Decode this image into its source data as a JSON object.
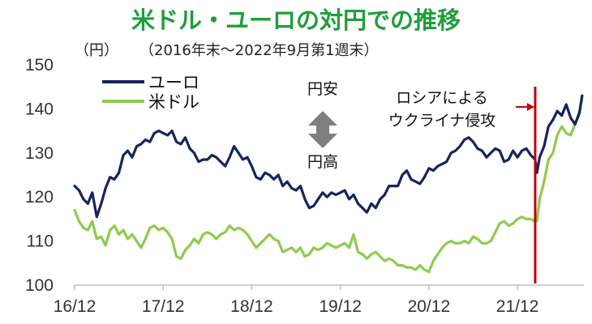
{
  "chart_data": {
    "type": "line",
    "title": "米ドル・ユーロの対円での推移",
    "unit_label": "（円）",
    "period_label": "（2016年末～2022年9月第1週末）",
    "ylim": [
      100,
      150
    ],
    "y_ticks": [
      "150",
      "140",
      "130",
      "120",
      "110",
      "100"
    ],
    "x_ticks": [
      "16/12",
      "17/12",
      "18/12",
      "19/12",
      "20/12",
      "21/12"
    ],
    "x_tick_values": [
      2016.95,
      2017.95,
      2018.95,
      2019.95,
      2020.95,
      2021.95
    ],
    "xlim": [
      2016.95,
      2022.7
    ],
    "grid": false,
    "legend_position": "top-left",
    "colors": {
      "euro": "#14245e",
      "usd": "#8ecb4e",
      "title": "#1f9e3a",
      "marker": "#c0000b",
      "arrow": "#7f7f7f"
    },
    "series": [
      {
        "name": "ユーロ",
        "x": [
          2016.95,
          2017.0,
          2017.05,
          2017.1,
          2017.15,
          2017.2,
          2017.25,
          2017.3,
          2017.35,
          2017.4,
          2017.45,
          2017.5,
          2017.55,
          2017.6,
          2017.65,
          2017.7,
          2017.75,
          2017.8,
          2017.85,
          2017.9,
          2017.95,
          2018.0,
          2018.05,
          2018.1,
          2018.15,
          2018.2,
          2018.25,
          2018.3,
          2018.35,
          2018.4,
          2018.45,
          2018.5,
          2018.55,
          2018.6,
          2018.65,
          2018.7,
          2018.75,
          2018.8,
          2018.85,
          2018.9,
          2018.95,
          2019.0,
          2019.05,
          2019.1,
          2019.15,
          2019.2,
          2019.25,
          2019.3,
          2019.35,
          2019.4,
          2019.45,
          2019.5,
          2019.55,
          2019.6,
          2019.65,
          2019.7,
          2019.75,
          2019.8,
          2019.85,
          2019.9,
          2019.95,
          2020.0,
          2020.05,
          2020.1,
          2020.15,
          2020.2,
          2020.25,
          2020.3,
          2020.35,
          2020.4,
          2020.45,
          2020.5,
          2020.55,
          2020.6,
          2020.65,
          2020.7,
          2020.75,
          2020.8,
          2020.85,
          2020.9,
          2020.95,
          2021.0,
          2021.05,
          2021.1,
          2021.15,
          2021.2,
          2021.25,
          2021.3,
          2021.35,
          2021.4,
          2021.45,
          2021.5,
          2021.55,
          2021.6,
          2021.65,
          2021.7,
          2021.75,
          2021.8,
          2021.85,
          2021.9,
          2021.95,
          2022.0,
          2022.05,
          2022.1,
          2022.15,
          2022.17,
          2022.2,
          2022.25,
          2022.3,
          2022.35,
          2022.4,
          2022.45,
          2022.5,
          2022.55,
          2022.6,
          2022.65,
          2022.68
        ],
        "values": [
          122.5,
          121.5,
          119.5,
          118.5,
          121.0,
          115.5,
          118.5,
          122.0,
          124.5,
          124.0,
          125.5,
          129.5,
          130.5,
          129.0,
          131.5,
          132.0,
          133.0,
          132.5,
          134.5,
          135.0,
          134.5,
          134.0,
          135.0,
          132.5,
          132.0,
          133.5,
          131.0,
          130.0,
          128.0,
          128.5,
          128.5,
          129.5,
          129.0,
          128.0,
          127.0,
          129.0,
          131.5,
          130.0,
          128.5,
          129.0,
          127.0,
          124.5,
          124.0,
          125.5,
          125.0,
          124.0,
          125.0,
          122.5,
          123.5,
          122.0,
          121.5,
          122.5,
          119.5,
          117.5,
          118.0,
          119.5,
          121.0,
          120.0,
          121.0,
          120.5,
          121.0,
          121.5,
          119.5,
          120.5,
          118.5,
          117.5,
          116.5,
          118.5,
          117.5,
          119.5,
          120.5,
          122.5,
          122.5,
          122.5,
          125.0,
          126.0,
          124.0,
          123.5,
          123.0,
          124.5,
          126.5,
          126.0,
          127.0,
          127.5,
          128.0,
          130.0,
          130.5,
          131.5,
          133.0,
          133.5,
          132.5,
          131.0,
          130.5,
          129.0,
          130.0,
          131.0,
          130.5,
          128.0,
          128.5,
          130.5,
          129.0,
          130.5,
          131.0,
          129.5,
          128.5,
          125.5,
          129.0,
          131.5,
          136.0,
          137.5,
          139.5,
          138.5,
          141.0,
          138.0,
          136.5,
          139.0,
          143.0
        ]
      },
      {
        "name": "米ドル",
        "x": [
          2016.95,
          2017.0,
          2017.05,
          2017.1,
          2017.15,
          2017.2,
          2017.25,
          2017.3,
          2017.35,
          2017.4,
          2017.45,
          2017.5,
          2017.55,
          2017.6,
          2017.65,
          2017.7,
          2017.75,
          2017.8,
          2017.85,
          2017.9,
          2017.95,
          2018.0,
          2018.05,
          2018.1,
          2018.15,
          2018.2,
          2018.25,
          2018.3,
          2018.35,
          2018.4,
          2018.45,
          2018.5,
          2018.55,
          2018.6,
          2018.65,
          2018.7,
          2018.75,
          2018.8,
          2018.85,
          2018.9,
          2018.95,
          2019.0,
          2019.05,
          2019.1,
          2019.15,
          2019.2,
          2019.25,
          2019.3,
          2019.35,
          2019.4,
          2019.45,
          2019.5,
          2019.55,
          2019.6,
          2019.65,
          2019.7,
          2019.75,
          2019.8,
          2019.85,
          2019.9,
          2019.95,
          2020.0,
          2020.05,
          2020.1,
          2020.15,
          2020.2,
          2020.25,
          2020.3,
          2020.35,
          2020.4,
          2020.45,
          2020.5,
          2020.55,
          2020.6,
          2020.65,
          2020.7,
          2020.75,
          2020.8,
          2020.85,
          2020.9,
          2020.95,
          2021.0,
          2021.05,
          2021.1,
          2021.15,
          2021.2,
          2021.25,
          2021.3,
          2021.35,
          2021.4,
          2021.45,
          2021.5,
          2021.55,
          2021.6,
          2021.65,
          2021.7,
          2021.75,
          2021.8,
          2021.85,
          2021.9,
          2021.95,
          2022.0,
          2022.05,
          2022.1,
          2022.15,
          2022.17,
          2022.2,
          2022.25,
          2022.3,
          2022.35,
          2022.4,
          2022.45,
          2022.5,
          2022.55,
          2022.6,
          2022.65,
          2022.68
        ],
        "values": [
          117.0,
          114.5,
          113.0,
          112.5,
          114.5,
          110.5,
          111.0,
          109.0,
          112.5,
          113.5,
          111.5,
          112.5,
          110.5,
          111.5,
          110.0,
          108.5,
          110.5,
          113.0,
          113.5,
          112.5,
          113.0,
          112.0,
          110.5,
          106.5,
          106.0,
          108.0,
          109.0,
          110.5,
          109.5,
          111.5,
          112.0,
          111.5,
          110.5,
          111.5,
          112.0,
          113.5,
          112.5,
          113.0,
          112.5,
          111.5,
          110.0,
          108.5,
          109.5,
          110.5,
          111.5,
          110.5,
          110.0,
          107.5,
          108.0,
          108.5,
          107.5,
          108.5,
          106.5,
          107.0,
          108.5,
          108.0,
          108.5,
          109.5,
          109.0,
          108.5,
          109.0,
          109.5,
          108.5,
          111.5,
          107.5,
          107.0,
          106.0,
          107.0,
          107.5,
          106.5,
          105.5,
          106.0,
          105.5,
          104.5,
          104.5,
          104.0,
          104.0,
          103.5,
          104.5,
          103.5,
          103.0,
          105.5,
          107.0,
          108.5,
          109.5,
          110.0,
          109.5,
          109.5,
          110.0,
          109.5,
          111.0,
          110.5,
          109.5,
          109.5,
          110.0,
          112.0,
          114.0,
          114.5,
          113.5,
          114.0,
          115.0,
          115.5,
          115.0,
          115.0,
          114.5,
          114.5,
          119.5,
          123.5,
          128.5,
          130.0,
          134.0,
          136.0,
          134.5,
          134.0,
          136.5,
          139.5,
          142.5
        ]
      }
    ],
    "event_marker": {
      "x": 2022.15,
      "label_lines": [
        "ロシアによる",
        "ウクライナ侵攻"
      ]
    },
    "direction_labels": {
      "up": "円安",
      "down": "円高"
    }
  }
}
